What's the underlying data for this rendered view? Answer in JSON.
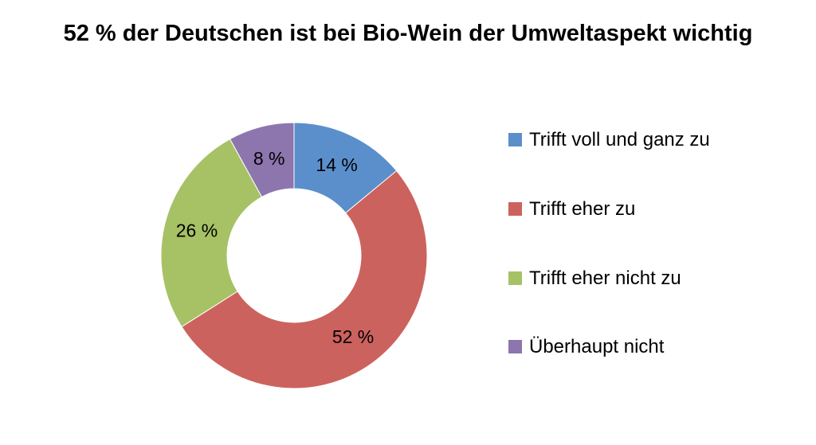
{
  "chart_data": {
    "type": "pie",
    "variant": "donut",
    "title": "52 % der Deutschen ist bei Bio-Wein der Umweltaspekt wichtig",
    "legend_position": "right",
    "categories": [
      "Trifft voll und ganz zu",
      "Trifft eher zu",
      "Trifft eher nicht zu",
      "Überhaupt nicht"
    ],
    "values": [
      14,
      52,
      26,
      8
    ],
    "data_labels": [
      "14 %",
      "52 %",
      "26 %",
      "8 %"
    ],
    "colors": [
      "#5B8FCB",
      "#CC625E",
      "#A6C265",
      "#8D75AE"
    ]
  }
}
